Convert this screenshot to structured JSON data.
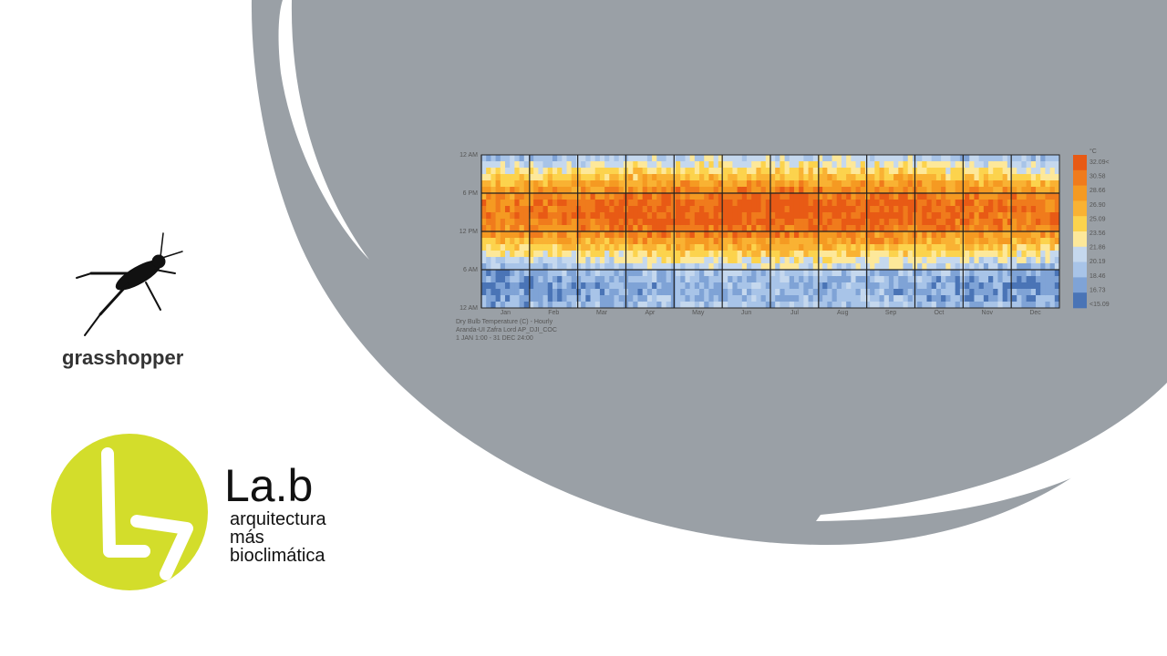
{
  "logo_grasshopper": {
    "label": "grasshopper"
  },
  "logo_lab": {
    "title": "La.b",
    "lines": [
      "arquitectura",
      "más",
      "bioclimática"
    ]
  },
  "heatmap": {
    "hour_labels": [
      "12 AM",
      "6 PM",
      "12 PM",
      "6 AM",
      "12 AM"
    ],
    "months": [
      "Jan",
      "Feb",
      "Mar",
      "Apr",
      "May",
      "Jun",
      "Jul",
      "Aug",
      "Sep",
      "Oct",
      "Nov",
      "Dec"
    ],
    "legend_unit": "°C",
    "legend_labels": [
      "32.09<",
      "30.58",
      "28.66",
      "26.90",
      "25.09",
      "23.56",
      "21.86",
      "20.19",
      "18.46",
      "16.73",
      "<15.09"
    ],
    "caption": [
      "Dry Bulb Temperature (C) - Hourly",
      "Aranda-UI Zafra Lord AP_DJI_COC",
      "1 JAN 1:00 - 31 DEC 24:00"
    ]
  }
}
